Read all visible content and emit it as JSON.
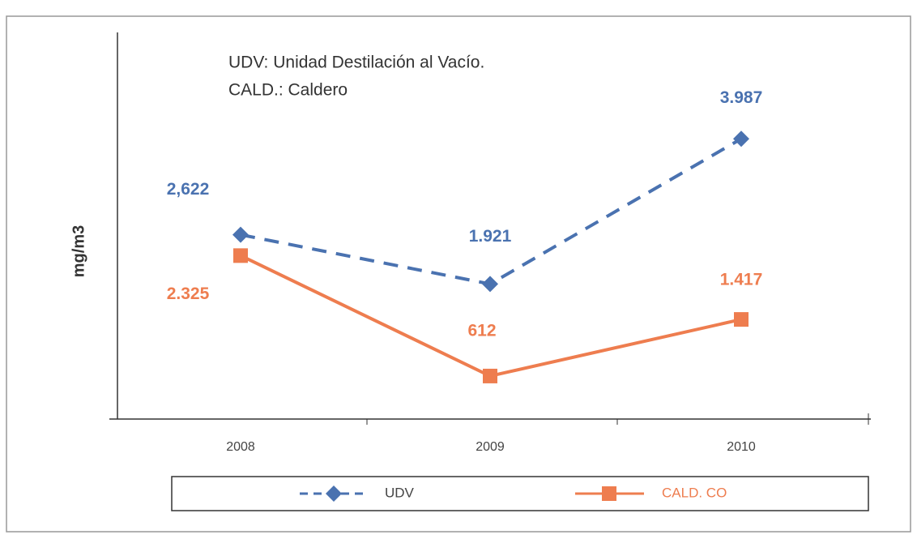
{
  "chart_data": {
    "type": "line",
    "annotations": [
      "UDV: Unidad Destilación al Vacío.",
      "CALD.: Caldero"
    ],
    "y_label": "mg/m3",
    "categories": [
      "2008",
      "2009",
      "2010"
    ],
    "ylim": [
      0,
      5500
    ],
    "series": [
      {
        "name": "UDV",
        "color": "#4a72b0",
        "line_style": "dashed",
        "marker": "diamond",
        "values": [
          2622,
          1921,
          3987
        ],
        "value_labels": [
          "2,622",
          "1.921",
          "3.987"
        ]
      },
      {
        "name": "CALD. CO",
        "color": "#ee7d4f",
        "line_style": "solid",
        "marker": "square",
        "values": [
          2325,
          612,
          1417
        ],
        "value_labels": [
          "2.325",
          "612",
          "1.417"
        ]
      }
    ],
    "legend": "bottom"
  }
}
